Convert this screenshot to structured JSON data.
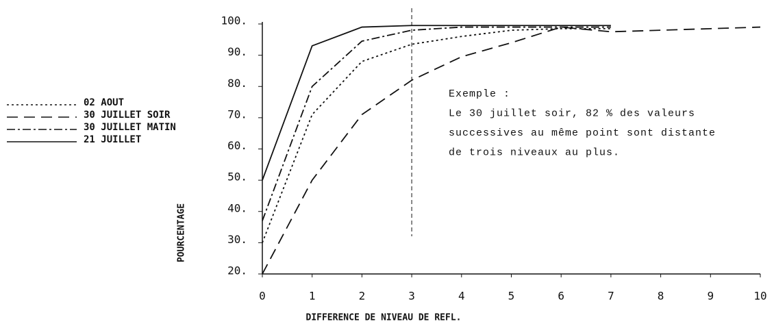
{
  "chart_data": {
    "type": "line",
    "x_label": "DIFFERENCE DE NIVEAU DE REFL.",
    "y_label": "POURCENTAGE",
    "x": [
      0,
      1,
      2,
      3,
      4,
      5,
      6,
      7,
      8,
      9,
      10
    ],
    "series": [
      {
        "name": "02 AOUT",
        "color": "#111",
        "dash": "3,4",
        "values": [
          30,
          71,
          88,
          93.5,
          96,
          98,
          98.5,
          98.5,
          null,
          null,
          null
        ]
      },
      {
        "name": "30 JUILLET SOIR",
        "color": "#111",
        "dash": "16,9",
        "values": [
          20,
          50,
          71,
          82,
          89.5,
          94,
          99,
          97.5,
          98,
          98.5,
          99
        ]
      },
      {
        "name": "30 JUILLET MATIN",
        "color": "#111",
        "dash": "12,4,3,4",
        "values": [
          37,
          80,
          94.5,
          98,
          99,
          99,
          99,
          99,
          null,
          null,
          null
        ]
      },
      {
        "name": "21 JUILLET",
        "color": "#111",
        "dash": "",
        "values": [
          50,
          93,
          99,
          99.5,
          99.5,
          99.5,
          99.5,
          99.5,
          null,
          null,
          null
        ]
      }
    ],
    "xlim": [
      0,
      10
    ],
    "xticks": [
      0,
      1,
      2,
      3,
      4,
      5,
      6,
      7,
      8,
      9,
      10
    ],
    "ylim": [
      20,
      100
    ],
    "yticks": [
      {
        "value": 20,
        "label": "20."
      },
      {
        "value": 30,
        "label": "30."
      },
      {
        "value": 40,
        "label": "40."
      },
      {
        "value": 50,
        "label": "50."
      },
      {
        "value": 60,
        "label": "60."
      },
      {
        "value": 70,
        "label": "70."
      },
      {
        "value": 80,
        "label": "80."
      },
      {
        "value": 90,
        "label": "90."
      },
      {
        "value": 100,
        "label": "100."
      }
    ],
    "vline_x": 3,
    "annotation": [
      "Exemple :",
      "Le 30 juillet soir, 82 % des valeurs",
      "successives au même point sont distante",
      "de trois niveaux au plus."
    ]
  }
}
